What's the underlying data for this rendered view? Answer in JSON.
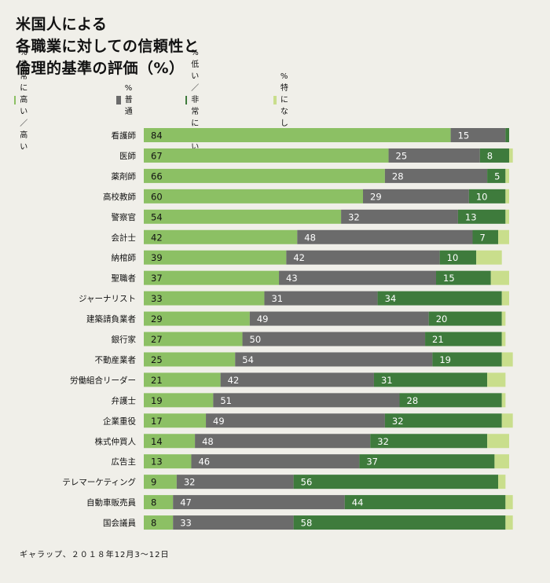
{
  "title_lines": [
    "米国人による",
    "各職業に対しての信頼性と",
    "倫理的基準の評価（%）"
  ],
  "source": "ギャラップ、２０１８年12月3～12日",
  "colors": {
    "very_high_high": "#8cc064",
    "average": "#6b6b6b",
    "low_very_low": "#3e7b3c",
    "no_opinion": "#c9de8c",
    "value_text_light": "#111111",
    "value_text_dark": "#ffffff"
  },
  "chart_data": {
    "type": "bar",
    "orientation": "horizontal",
    "stacked": true,
    "xlim": [
      0,
      100
    ],
    "grid": false,
    "legend_position": "top-left",
    "categories": [
      "看護師",
      "医師",
      "薬剤師",
      "高校教師",
      "警察官",
      "会計士",
      "納棺師",
      "聖職者",
      "ジャーナリスト",
      "建築請負業者",
      "銀行家",
      "不動産業者",
      "労働組合リーダー",
      "弁護士",
      "企業重役",
      "株式仲買人",
      "広告主",
      "テレマーケティング",
      "自動車販売員",
      "国会議員"
    ],
    "series": [
      {
        "name": "%非常に高い／高い",
        "values": [
          84,
          67,
          66,
          60,
          54,
          42,
          39,
          37,
          33,
          29,
          27,
          25,
          21,
          19,
          17,
          14,
          13,
          9,
          8,
          8
        ]
      },
      {
        "name": "%普通",
        "values": [
          15,
          25,
          28,
          29,
          32,
          48,
          42,
          43,
          31,
          49,
          50,
          54,
          42,
          51,
          49,
          48,
          46,
          32,
          47,
          33
        ]
      },
      {
        "name": "%低い／非常に低い",
        "values": [
          1,
          8,
          5,
          10,
          13,
          7,
          10,
          15,
          34,
          20,
          21,
          19,
          31,
          28,
          32,
          32,
          37,
          56,
          44,
          58
        ]
      },
      {
        "name": "%特になし",
        "values": [
          0,
          1,
          1,
          1,
          1,
          3,
          7,
          5,
          2,
          1,
          1,
          3,
          5,
          1,
          3,
          6,
          4,
          2,
          2,
          2
        ]
      }
    ],
    "labeled_series": [
      0,
      1,
      2
    ],
    "hidden_labels": [
      [
        0,
        2
      ]
    ]
  }
}
